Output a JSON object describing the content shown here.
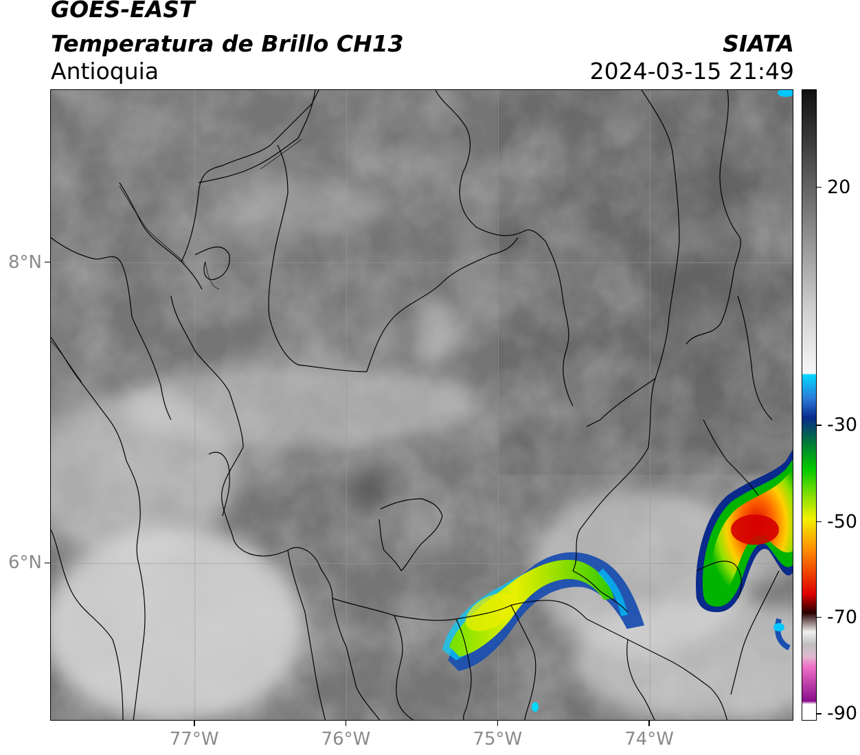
{
  "header": {
    "satellite": "GOES-EAST",
    "product": "Temperatura de Brillo CH13",
    "region": "Antioquia",
    "org": "SIATA",
    "datetime": "2024-03-15 21:49"
  },
  "map": {
    "lon_range": [
      -77.95,
      -73.05
    ],
    "lat_range": [
      4.95,
      9.15
    ],
    "lon_ticks": [
      {
        "value": -77,
        "label": "77°W"
      },
      {
        "value": -76,
        "label": "76°W"
      },
      {
        "value": -75,
        "label": "75°W"
      },
      {
        "value": -74,
        "label": "74°W"
      }
    ],
    "lat_ticks": [
      {
        "value": 8,
        "label": "8°N"
      },
      {
        "value": 6,
        "label": "6°N"
      }
    ]
  },
  "colorbar": {
    "ticks": [
      "20",
      "-30",
      "-50",
      "-70",
      "-90"
    ],
    "colors": {
      "top": "#111111",
      "mid_gray": "#999999",
      "light": "#f7f7f7",
      "cyan": "#00d8ff",
      "blue": "#0a2a8c",
      "green": "#00c800",
      "yellow": "#f2f200",
      "orange": "#ff8c00",
      "red": "#e00000",
      "dark": "#2a0000",
      "pink": "#f070c8",
      "purple": "#8a0f8a"
    }
  }
}
